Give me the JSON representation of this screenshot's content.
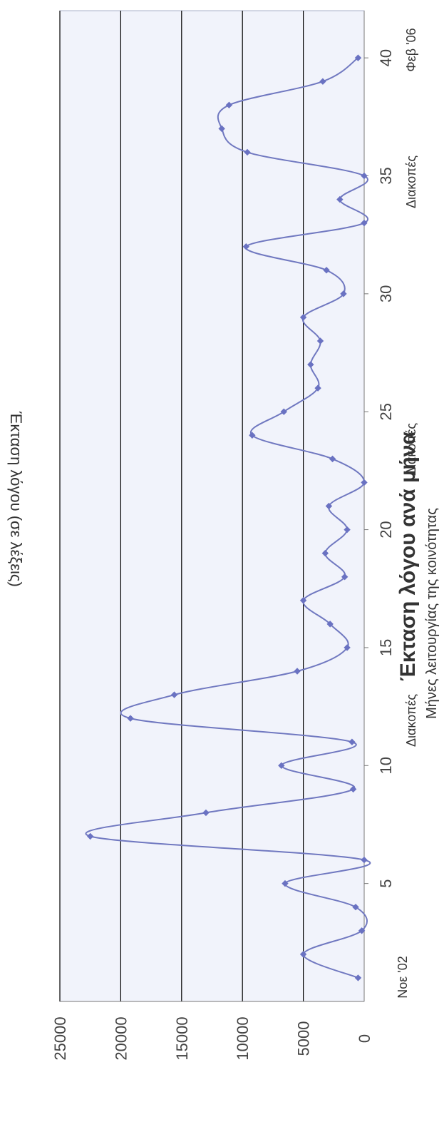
{
  "chart_data": {
    "type": "line",
    "title": "Έκταση λόγου ανά μήνα",
    "xlabel": "Μήνες λειτουργίας της κοινότητας",
    "ylabel": "Έκταση λόγου (σε λέξεις)",
    "x_ticks": [
      "5",
      "10",
      "15",
      "20",
      "25",
      "30",
      "35",
      "40"
    ],
    "y_ticks": [
      "0",
      "5000",
      "10000",
      "15000",
      "20000",
      "25000"
    ],
    "xlim": [
      0,
      42
    ],
    "ylim": [
      0,
      25000
    ],
    "grid": true,
    "rotated": true,
    "annotations": [
      "Νοε '02",
      "Διακοπές",
      "Διακοπές",
      "Διακοπές",
      "Φεβ '06"
    ],
    "series": [
      {
        "x": [
          1,
          2,
          3,
          4,
          5,
          6,
          7,
          8,
          9,
          10,
          11,
          12,
          13,
          14,
          15,
          16,
          17,
          18,
          19,
          20,
          21,
          22,
          23,
          24,
          25,
          26,
          27,
          28,
          29,
          30,
          31,
          32,
          33,
          34,
          35,
          36,
          37,
          38,
          39,
          40
        ],
        "values": [
          500,
          5000,
          200,
          700,
          6500,
          0,
          22500,
          13000,
          900,
          6800,
          1000,
          19200,
          15600,
          5500,
          1400,
          2800,
          5000,
          1600,
          3200,
          1400,
          2900,
          0,
          2600,
          9200,
          6600,
          3800,
          4400,
          3600,
          5000,
          1700,
          3100,
          9700,
          0,
          2000,
          0,
          9600,
          11700,
          11100,
          3400,
          500
        ]
      }
    ]
  }
}
